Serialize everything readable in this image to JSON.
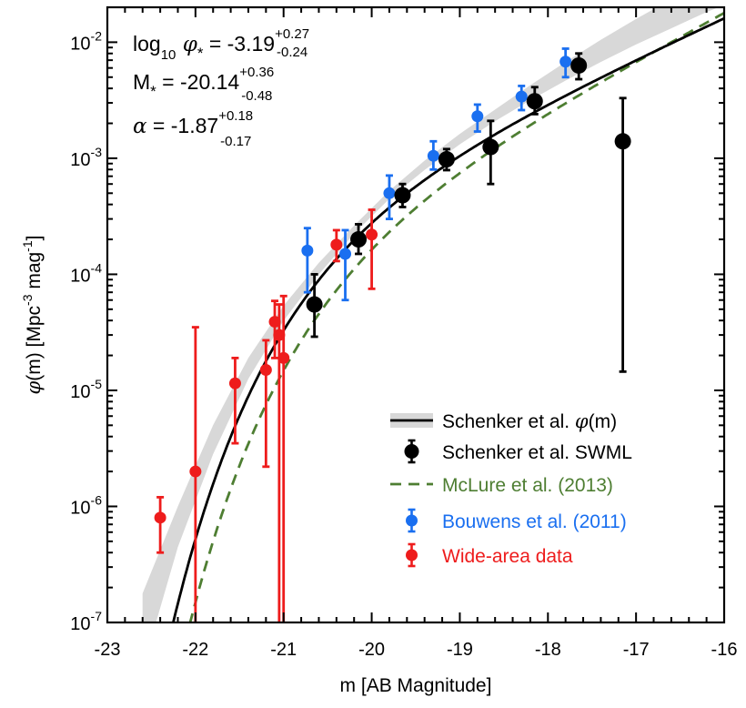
{
  "chart_data": {
    "type": "scatter",
    "title": "",
    "xlabel": "m [AB Magnitude]",
    "ylabel": "φ(m) [Mpc⁻³ mag⁻¹]",
    "xlim": [
      -23,
      -16
    ],
    "ylim": [
      1e-07,
      0.02
    ],
    "yscale": "log",
    "x_ticks": [
      -23,
      -22,
      -21,
      -20,
      -19,
      -18,
      -17,
      -16
    ],
    "x_tick_labels": [
      "-23",
      "-22",
      "-21",
      "-20",
      "-19",
      "-18",
      "-17",
      "-16"
    ],
    "y_ticks": [
      1e-07,
      1e-06,
      1e-05,
      0.0001,
      0.001,
      0.01
    ],
    "y_tick_labels": [
      {
        "base": "10",
        "exp": "-7"
      },
      {
        "base": "10",
        "exp": "-6"
      },
      {
        "base": "10",
        "exp": "-5"
      },
      {
        "base": "10",
        "exp": "-4"
      },
      {
        "base": "10",
        "exp": "-3"
      },
      {
        "base": "10",
        "exp": "-2"
      }
    ],
    "annotations": {
      "phi_star": {
        "prefix": "log",
        "sub": "10",
        "symbol": "φ",
        "star": "*",
        "value": "= -3.19",
        "plus": "+0.27",
        "minus": "-0.24"
      },
      "m_star": {
        "symbol": "M",
        "star": "*",
        "value": "= -20.14",
        "plus": "+0.36",
        "minus": "-0.48"
      },
      "alpha": {
        "symbol": "α",
        "value": "= -1.87",
        "plus": "+0.18",
        "minus": "-0.17"
      }
    },
    "legend": {
      "position": "bottom-right",
      "entries": [
        {
          "label": "Schenker et al. φ(m)",
          "style": "line-band",
          "color": "#000000"
        },
        {
          "label": "Schenker et al. SWML",
          "style": "point",
          "color": "#000000"
        },
        {
          "label": "McLure et al. (2013)",
          "style": "dashed",
          "color": "#4e7e32"
        },
        {
          "label": "Bouwens et al. (2011)",
          "style": "point",
          "color": "#1a6ff0"
        },
        {
          "label": "Wide-area data",
          "style": "point",
          "color": "#ee1c1c"
        }
      ]
    },
    "colors": {
      "black": "#000000",
      "green": "#4e7e32",
      "blue": "#1a6ff0",
      "red": "#ee1c1c",
      "band": "#d8d8d8"
    },
    "series": [
      {
        "name": "Schenker et al. φ(m)",
        "kind": "schechter",
        "params": {
          "log10_phi_star": -3.19,
          "m_star": -20.14,
          "alpha": -1.87
        },
        "band": {
          "x": [
            -22.6,
            -22.2,
            -21.8,
            -21.4,
            -21.0,
            -20.6,
            -20.2,
            -19.8,
            -19.4,
            -19.0,
            -18.6,
            -18.2,
            -17.8,
            -17.4,
            -17.0,
            -16.6,
            -16.2,
            -16.0
          ],
          "lower_log": [
            -7.4,
            -6.35,
            -5.55,
            -4.9,
            -4.4,
            -4.0,
            -3.65,
            -3.35,
            -3.1,
            -2.88,
            -2.68,
            -2.5,
            -2.33,
            -2.17,
            -2.02,
            -1.88,
            -1.74,
            -1.68
          ],
          "upper_log": [
            -6.75,
            -6.0,
            -5.3,
            -4.72,
            -4.27,
            -3.9,
            -3.58,
            -3.28,
            -3.02,
            -2.79,
            -2.58,
            -2.37,
            -2.17,
            -1.98,
            -1.8,
            -1.63,
            -1.47,
            -1.39
          ]
        }
      },
      {
        "name": "McLure et al. (2013)",
        "kind": "schechter",
        "params": {
          "log10_phi_star": -3.35,
          "m_star": -20.04,
          "alpha": -2.02
        }
      },
      {
        "name": "Schenker et al. SWML",
        "points": [
          {
            "x": -20.65,
            "y": 5.5e-05,
            "lo": 2.9e-05,
            "hi": 0.0001
          },
          {
            "x": -20.15,
            "y": 0.0002,
            "lo": 0.00015,
            "hi": 0.00027
          },
          {
            "x": -19.65,
            "y": 0.00048,
            "lo": 0.00038,
            "hi": 0.0006
          },
          {
            "x": -19.15,
            "y": 0.00098,
            "lo": 0.00079,
            "hi": 0.0012
          },
          {
            "x": -18.65,
            "y": 0.00125,
            "lo": 0.0006,
            "hi": 0.0021
          },
          {
            "x": -18.15,
            "y": 0.0031,
            "lo": 0.0024,
            "hi": 0.0041
          },
          {
            "x": -17.65,
            "y": 0.0063,
            "lo": 0.0048,
            "hi": 0.008
          },
          {
            "x": -17.15,
            "y": 0.0014,
            "lo": 1.45e-05,
            "hi": 0.0033
          }
        ]
      },
      {
        "name": "Bouwens et al. (2011)",
        "points": [
          {
            "x": -20.73,
            "y": 0.00016,
            "lo": 7e-05,
            "hi": 0.00025
          },
          {
            "x": -20.3,
            "y": 0.00015,
            "lo": 6e-05,
            "hi": 0.00024
          },
          {
            "x": -19.8,
            "y": 0.0005,
            "lo": 0.0003,
            "hi": 0.00071
          },
          {
            "x": -19.3,
            "y": 0.00105,
            "lo": 0.0008,
            "hi": 0.0014
          },
          {
            "x": -18.8,
            "y": 0.0023,
            "lo": 0.0017,
            "hi": 0.0029
          },
          {
            "x": -18.3,
            "y": 0.0034,
            "lo": 0.0026,
            "hi": 0.0042
          },
          {
            "x": -17.8,
            "y": 0.0068,
            "lo": 0.005,
            "hi": 0.0088
          }
        ]
      },
      {
        "name": "Wide-area data",
        "points": [
          {
            "x": -22.4,
            "y": 8e-07,
            "lo": 4e-07,
            "hi": 1.2e-06
          },
          {
            "x": -22.0,
            "y": 2e-06,
            "lo": 1e-07,
            "hi": 3.5e-05
          },
          {
            "x": -21.55,
            "y": 1.15e-05,
            "lo": 3.5e-06,
            "hi": 1.9e-05
          },
          {
            "x": -21.2,
            "y": 1.5e-05,
            "lo": 2.2e-06,
            "hi": 2.7e-05
          },
          {
            "x": -21.1,
            "y": 3.9e-05,
            "lo": 1.9e-05,
            "hi": 5.9e-05
          },
          {
            "x": -21.05,
            "y": 3e-05,
            "lo": 1e-07,
            "hi": 5.5e-05
          },
          {
            "x": -21.0,
            "y": 1.9e-05,
            "lo": 1e-07,
            "hi": 6.5e-05
          },
          {
            "x": -20.4,
            "y": 0.00018,
            "lo": 0.00013,
            "hi": 0.00024
          },
          {
            "x": -20.0,
            "y": 0.00022,
            "lo": 7.5e-05,
            "hi": 0.00036
          }
        ]
      }
    ]
  }
}
